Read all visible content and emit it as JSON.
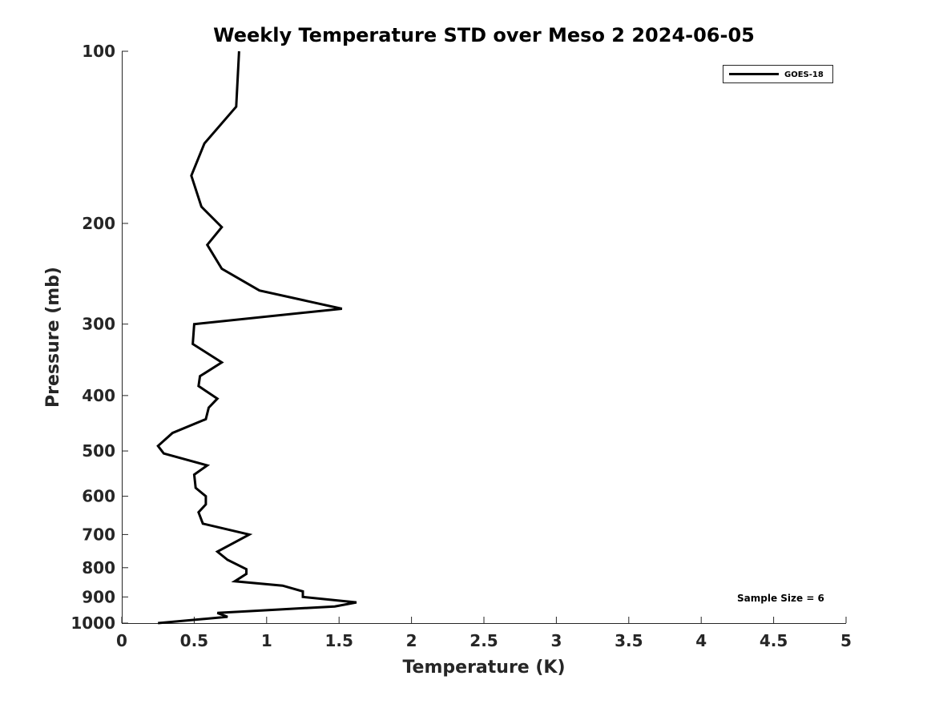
{
  "chart_data": {
    "type": "line",
    "title": "Weekly Temperature STD over Meso 2 2024-06-05",
    "xlabel": "Temperature (K)",
    "ylabel": "Pressure (mb)",
    "xlim": [
      0,
      5
    ],
    "ylim": [
      100,
      1000
    ],
    "y_scale": "log",
    "y_reversed": true,
    "grid": false,
    "x_ticks": [
      0,
      0.5,
      1,
      1.5,
      2,
      2.5,
      3,
      3.5,
      4,
      4.5,
      5
    ],
    "x_tick_labels": [
      "0",
      "0.5",
      "1",
      "1.5",
      "2",
      "2.5",
      "3",
      "3.5",
      "4",
      "4.5",
      "5"
    ],
    "y_ticks": [
      100,
      200,
      300,
      400,
      500,
      600,
      700,
      800,
      900,
      1000
    ],
    "y_tick_labels": [
      "100",
      "200",
      "300",
      "400",
      "500",
      "600",
      "700",
      "800",
      "900",
      "1000"
    ],
    "legend": {
      "position": "top-right",
      "entries": [
        "GOES-18"
      ]
    },
    "annotation": "Sample Size = 6",
    "series": [
      {
        "name": "GOES-18",
        "color": "#000000",
        "x": [
          0.81,
          0.79,
          0.57,
          0.48,
          0.55,
          0.69,
          0.59,
          0.69,
          0.95,
          1.52,
          0.5,
          0.49,
          0.69,
          0.54,
          0.53,
          0.66,
          0.6,
          0.58,
          0.35,
          0.25,
          0.29,
          0.59,
          0.5,
          0.51,
          0.58,
          0.58,
          0.53,
          0.56,
          0.88,
          0.66,
          0.73,
          0.86,
          0.86,
          0.78,
          1.11,
          1.25,
          1.25,
          1.62,
          1.47,
          0.66,
          0.73,
          0.25
        ],
        "y": [
          100,
          125,
          145,
          165,
          187,
          203,
          218,
          240,
          262,
          282,
          300,
          325,
          350,
          370,
          385,
          405,
          420,
          440,
          465,
          490,
          505,
          530,
          550,
          580,
          600,
          620,
          640,
          670,
          700,
          750,
          775,
          805,
          820,
          845,
          860,
          880,
          900,
          920,
          935,
          960,
          975,
          1000
        ]
      }
    ]
  }
}
